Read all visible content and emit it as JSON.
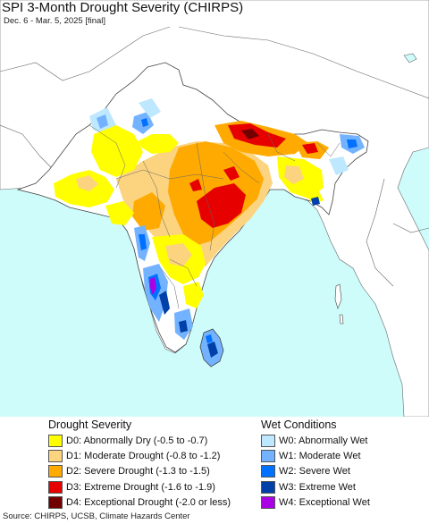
{
  "title": "SPI 3-Month Drought Severity (CHIRPS)",
  "subtitle": "Dec. 6 - Mar. 5, 2025 [final]",
  "legend": {
    "drought_heading": "Drought Severity",
    "wet_heading": "Wet Conditions",
    "drought_items": [
      {
        "label": "D0: Abnormally Dry (-0.5 to -0.7)",
        "color": "#ffff00"
      },
      {
        "label": "D1: Moderate Drought (-0.8 to -1.2)",
        "color": "#fcd37f"
      },
      {
        "label": "D2: Severe Drought (-1.3 to -1.5)",
        "color": "#ffaa00"
      },
      {
        "label": "D3: Extreme Drought (-1.6 to -1.9)",
        "color": "#e60000"
      },
      {
        "label": "D4: Exceptional Drought (-2.0 or less)",
        "color": "#730000"
      }
    ],
    "wet_items": [
      {
        "label": "W0: Abnormally Wet",
        "color": "#bee8ff"
      },
      {
        "label": "W1: Moderate Wet",
        "color": "#73b2ff"
      },
      {
        "label": "W2: Severe Wet",
        "color": "#0070ff"
      },
      {
        "label": "W3: Extreme Wet",
        "color": "#0040a8"
      },
      {
        "label": "W4: Exceptional Wet",
        "color": "#a900e6"
      }
    ]
  },
  "source": "Source: CHIRPS, UCSB, Climate Hazards Center",
  "colors": {
    "ocean": "#cdfcfb",
    "land_outside": "#ffffff",
    "border": "#555555"
  }
}
